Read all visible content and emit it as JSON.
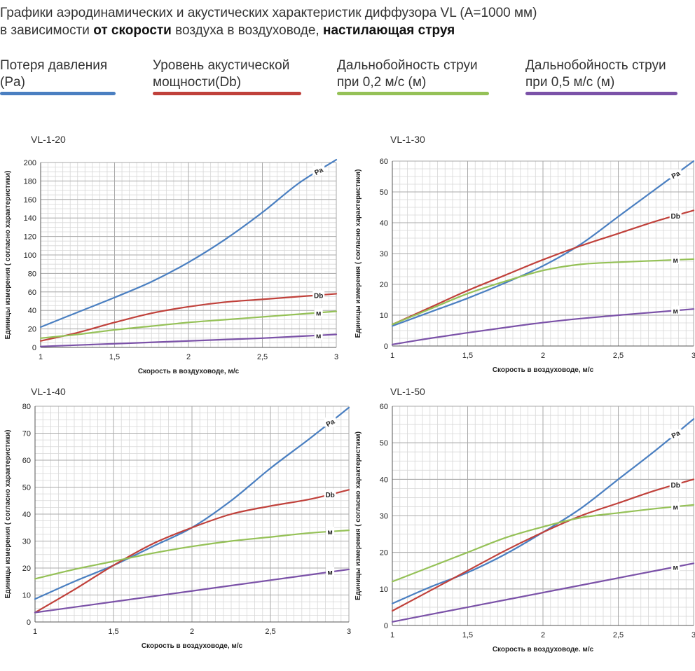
{
  "header": {
    "title_line1": "Графики аэродинамических и акустических характеристик  диффузора VL (А=1000 мм)",
    "title_line2_a": "в зависимости ",
    "title_line2_b": "от скорости",
    "title_line2_c": " воздуха в воздуховоде, ",
    "title_line2_d": "настилающая струя"
  },
  "legend": [
    {
      "line1": "Потеря давления",
      "line2": "(Pa)",
      "color": "#4a7fc1"
    },
    {
      "line1": "Уровень акустической",
      "line2": "мощности(Db)",
      "color": "#c0413b"
    },
    {
      "line1": "Дальнобойность струи",
      "line2": "при 0,2 м/с (м)",
      "color": "#95c157"
    },
    {
      "line1": "Дальнобойность струи",
      "line2": "при 0,5 м/с (м)",
      "color": "#7b52a8"
    }
  ],
  "chart_data": [
    {
      "type": "line",
      "title": "VL-1-20",
      "xlabel": "Скорость в воздуховоде, м/с",
      "ylabel": "Единицы измерения ( согласно характеристики)",
      "xlim": [
        1,
        3
      ],
      "ylim": [
        0,
        200
      ],
      "xticks": [
        "1",
        "1,5",
        "2",
        "2,5",
        "3"
      ],
      "yticks": [
        "0",
        "20",
        "40",
        "60",
        "80",
        "100",
        "120",
        "140",
        "160",
        "180",
        "200"
      ],
      "grid": true,
      "series": [
        {
          "name": "Pa",
          "color": "#4a7fc1",
          "x": [
            1,
            1.25,
            1.5,
            1.75,
            2,
            2.25,
            2.5,
            2.75,
            3
          ],
          "y": [
            22,
            38,
            54,
            71,
            92,
            117,
            146,
            178,
            203
          ]
        },
        {
          "name": "Db",
          "color": "#c0413b",
          "x": [
            1,
            1.25,
            1.5,
            1.75,
            2,
            2.25,
            2.5,
            2.75,
            3
          ],
          "y": [
            7,
            16,
            27,
            37,
            44,
            49,
            52,
            55,
            58
          ]
        },
        {
          "name": "м",
          "color": "#95c157",
          "x": [
            1,
            1.25,
            1.5,
            1.75,
            2,
            2.25,
            2.5,
            2.75,
            3
          ],
          "y": [
            10,
            14,
            19,
            23,
            27,
            30,
            33,
            36,
            39
          ]
        },
        {
          "name": "м",
          "color": "#7b52a8",
          "x": [
            1,
            1.25,
            1.5,
            1.75,
            2,
            2.25,
            2.5,
            2.75,
            3
          ],
          "y": [
            1,
            2.5,
            4,
            5.5,
            7,
            8.5,
            10,
            12,
            14
          ]
        }
      ]
    },
    {
      "type": "line",
      "title": "VL-1-30",
      "xlabel": "Скорость в воздуховоде, м/с",
      "ylabel": "Единицы измерения ( согласно характеристики)",
      "xlim": [
        1,
        3
      ],
      "ylim": [
        0,
        60
      ],
      "xticks": [
        "1",
        "1,5",
        "2",
        "2,5",
        "3"
      ],
      "yticks": [
        "0",
        "10",
        "20",
        "30",
        "40",
        "50",
        "60"
      ],
      "grid": true,
      "series": [
        {
          "name": "Pa",
          "color": "#4a7fc1",
          "x": [
            1,
            1.25,
            1.5,
            1.75,
            2,
            2.25,
            2.5,
            2.75,
            3
          ],
          "y": [
            6.5,
            11,
            15.5,
            20.5,
            26,
            33,
            42,
            51,
            60
          ]
        },
        {
          "name": "Db",
          "color": "#c0413b",
          "x": [
            1,
            1.25,
            1.5,
            1.75,
            2,
            2.25,
            2.5,
            2.75,
            3
          ],
          "y": [
            7,
            12.5,
            18,
            23,
            28,
            32.5,
            36.5,
            40.5,
            44
          ]
        },
        {
          "name": "м",
          "color": "#95c157",
          "x": [
            1,
            1.25,
            1.5,
            1.75,
            2,
            2.25,
            2.5,
            2.75,
            3
          ],
          "y": [
            7,
            12,
            17,
            21,
            24.5,
            26.5,
            27.2,
            27.7,
            28.2
          ]
        },
        {
          "name": "м",
          "color": "#7b52a8",
          "x": [
            1,
            1.25,
            1.5,
            1.75,
            2,
            2.25,
            2.5,
            2.75,
            3
          ],
          "y": [
            0.5,
            2.5,
            4.3,
            6,
            7.6,
            8.9,
            10,
            11,
            12
          ]
        }
      ]
    },
    {
      "type": "line",
      "title": "VL-1-40",
      "xlabel": "Скорость в воздуховоде, м/с",
      "ylabel": "Единицы измерения ( согласно характеристики)",
      "xlim": [
        1,
        3
      ],
      "ylim": [
        0,
        80
      ],
      "xticks": [
        "1",
        "1,5",
        "2",
        "2,5",
        "3"
      ],
      "yticks": [
        "0",
        "10",
        "20",
        "30",
        "40",
        "50",
        "60",
        "70",
        "80"
      ],
      "grid": true,
      "series": [
        {
          "name": "Pa",
          "color": "#4a7fc1",
          "x": [
            1,
            1.25,
            1.5,
            1.75,
            2,
            2.25,
            2.5,
            2.75,
            3
          ],
          "y": [
            8.5,
            15,
            21,
            28,
            35,
            45,
            57,
            68,
            79.5
          ]
        },
        {
          "name": "Db",
          "color": "#c0413b",
          "x": [
            1,
            1.25,
            1.5,
            1.75,
            2,
            2.25,
            2.5,
            2.75,
            3
          ],
          "y": [
            3.5,
            12,
            21,
            29,
            35,
            40,
            43,
            45.5,
            49
          ]
        },
        {
          "name": "м",
          "color": "#95c157",
          "x": [
            1,
            1.25,
            1.5,
            1.75,
            2,
            2.25,
            2.5,
            2.75,
            3
          ],
          "y": [
            16,
            19.5,
            22.5,
            25.5,
            28,
            30,
            31.5,
            33,
            34
          ]
        },
        {
          "name": "м",
          "color": "#7b52a8",
          "x": [
            1,
            1.25,
            1.5,
            1.75,
            2,
            2.25,
            2.5,
            2.75,
            3
          ],
          "y": [
            3.5,
            5.5,
            7.5,
            9.5,
            11.5,
            13.5,
            15.5,
            17.5,
            19.5
          ]
        }
      ]
    },
    {
      "type": "line",
      "title": "VL-1-50",
      "xlabel": "Скорость в воздуховоде. м/с",
      "ylabel": "Единицы измерения ( согласно характеристики)",
      "xlim": [
        1,
        3
      ],
      "ylim": [
        0,
        60
      ],
      "xticks": [
        "1",
        "1,5",
        "2",
        "2,5",
        "3"
      ],
      "yticks": [
        "0",
        "10",
        "20",
        "30",
        "40",
        "50",
        "60"
      ],
      "grid": true,
      "series": [
        {
          "name": "Pa",
          "color": "#4a7fc1",
          "x": [
            1,
            1.25,
            1.5,
            1.75,
            2,
            2.25,
            2.5,
            2.75,
            3
          ],
          "y": [
            6,
            10.5,
            14.5,
            19.5,
            25.5,
            32,
            40,
            48,
            56.5
          ]
        },
        {
          "name": "Db",
          "color": "#c0413b",
          "x": [
            1,
            1.25,
            1.5,
            1.75,
            2,
            2.25,
            2.5,
            2.75,
            3
          ],
          "y": [
            4,
            9.5,
            15,
            20.5,
            25.5,
            30,
            33.5,
            37,
            40
          ]
        },
        {
          "name": "м",
          "color": "#95c157",
          "x": [
            1,
            1.25,
            1.5,
            1.75,
            2,
            2.25,
            2.5,
            2.75,
            3
          ],
          "y": [
            12,
            16,
            20,
            24,
            27,
            29.5,
            30.8,
            32,
            33
          ]
        },
        {
          "name": "м",
          "color": "#7b52a8",
          "x": [
            1,
            1.25,
            1.5,
            1.75,
            2,
            2.25,
            2.5,
            2.75,
            3
          ],
          "y": [
            1,
            3,
            5,
            7,
            9,
            11,
            13,
            15,
            17
          ]
        }
      ]
    }
  ]
}
